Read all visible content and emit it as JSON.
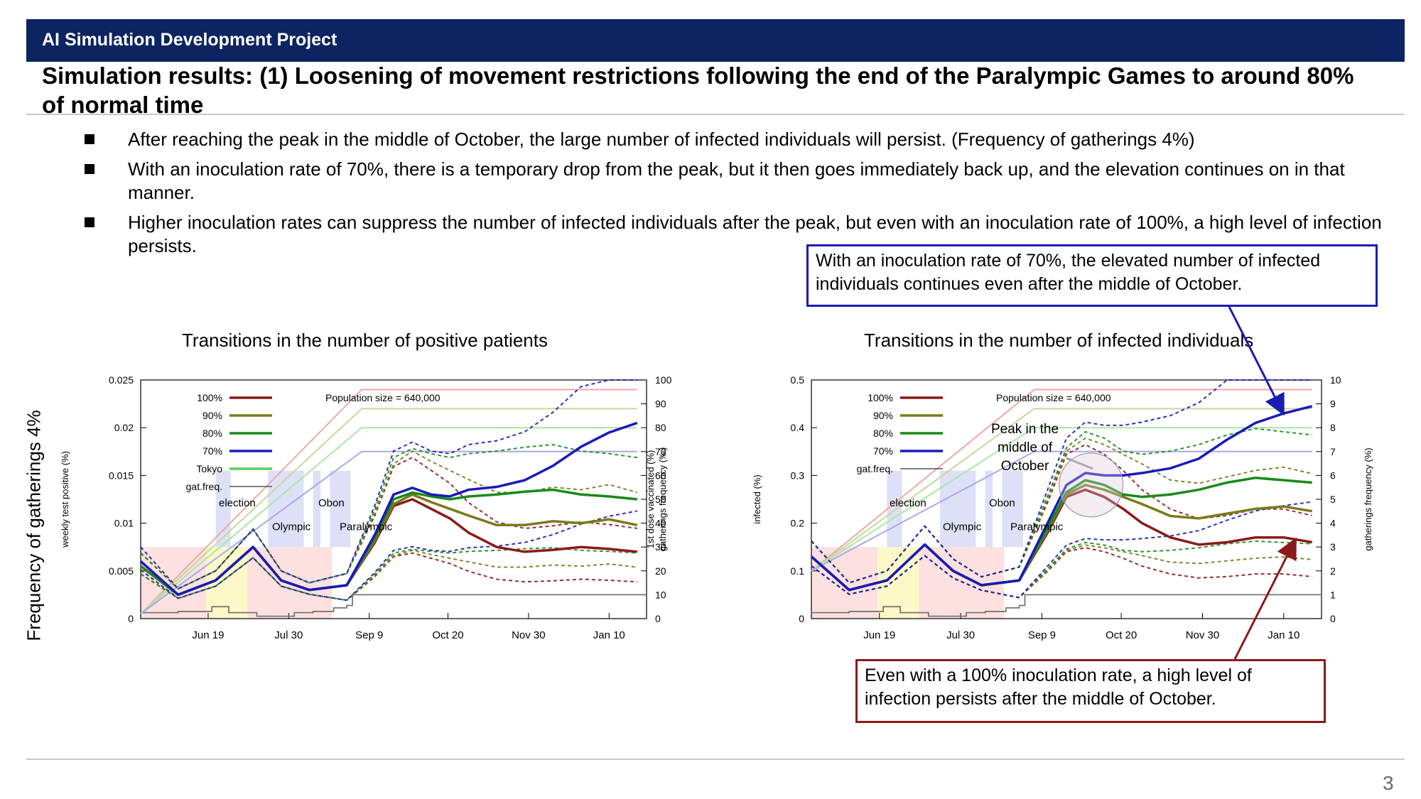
{
  "header": {
    "project": "AI Simulation Development Project",
    "title": "Simulation results: (1) Loosening of movement restrictions following the end of the Paralympic Games to around 80% of normal time"
  },
  "bullets": [
    "After reaching the peak in the middle of October, the large number of infected individuals will persist. (Frequency of gatherings 4%)",
    "With an inoculation rate of 70%, there is a temporary drop from the peak, but it then goes immediately back up, and the elevation continues on in that manner.",
    "Higher inoculation rates can suppress the number of infected individuals after the peak, but even with an inoculation rate of 100%, a high level of infection persists."
  ],
  "callouts": {
    "blue": "With an inoculation rate of 70%, the elevated number of infected individuals continues even after the middle of October.",
    "red": "Even with a 100% inoculation rate, a high level of infection persists after the middle of October."
  },
  "side_label": "Frequency of gatherings 4%",
  "page_number": "3",
  "colors": {
    "header_bg": "#0c2461",
    "s100": "#8b1a1a",
    "s90": "#7a7a1a",
    "s80": "#1a8a1a",
    "s70": "#1a1ab8",
    "tokyo": "#5ad05a",
    "gat": "#555555",
    "blue_callout": "#1c1cb0",
    "red_callout": "#8b1a1a"
  },
  "chart_data": [
    {
      "type": "line",
      "title": "Transitions in the number of positive patients",
      "ylabel_left": "weekly test positive (%)",
      "ylabel_right": [
        "1st dose vaccinated (%)",
        "gatherings frequency (‰)"
      ],
      "ylim_left": [
        0,
        0.025
      ],
      "left_ticks": [
        "0",
        "0.005",
        "0.01",
        "0.015",
        "0.02",
        "0.025"
      ],
      "ylim_right": [
        0,
        100
      ],
      "right_ticks": [
        "0",
        "10",
        "20",
        "30",
        "40",
        "50",
        "60",
        "70",
        "80",
        "90",
        "100"
      ],
      "x_ticks": [
        "Jun 19",
        "Jul 30",
        "Sep 9",
        "Oct 20",
        "Nov 30",
        "Jan 10"
      ],
      "population": "Population size = 640,000",
      "legend": [
        "100%",
        "90%",
        "80%",
        "70%",
        "Tokyo",
        "gat.freq."
      ],
      "event_labels": [
        "election",
        "Olympic",
        "Obon",
        "Paralympic"
      ],
      "series": [
        {
          "name": "100%",
          "color": "s100",
          "x": [
            0,
            20,
            40,
            60,
            75,
            90,
            110,
            125,
            135,
            145,
            155,
            165,
            175,
            190,
            205,
            220,
            235,
            250,
            265
          ],
          "values": [
            0.0055,
            0.0025,
            0.004,
            0.0075,
            0.004,
            0.003,
            0.0035,
            0.008,
            0.0118,
            0.0125,
            0.0115,
            0.0105,
            0.009,
            0.0075,
            0.007,
            0.0072,
            0.0075,
            0.0073,
            0.007
          ]
        },
        {
          "name": "90%",
          "color": "s90",
          "x": [
            0,
            20,
            40,
            60,
            75,
            90,
            110,
            125,
            135,
            145,
            155,
            165,
            175,
            190,
            205,
            220,
            235,
            250,
            265
          ],
          "values": [
            0.0055,
            0.0025,
            0.004,
            0.0075,
            0.004,
            0.003,
            0.0035,
            0.0082,
            0.012,
            0.013,
            0.0122,
            0.0115,
            0.0108,
            0.0098,
            0.0098,
            0.0102,
            0.01,
            0.0104,
            0.0098
          ]
        },
        {
          "name": "80%",
          "color": "s80",
          "x": [
            0,
            20,
            40,
            60,
            75,
            90,
            110,
            125,
            135,
            145,
            155,
            165,
            175,
            190,
            205,
            220,
            235,
            250,
            265
          ],
          "values": [
            0.0055,
            0.0025,
            0.004,
            0.0075,
            0.004,
            0.003,
            0.0035,
            0.0085,
            0.0125,
            0.0132,
            0.0128,
            0.0125,
            0.0128,
            0.013,
            0.0133,
            0.0135,
            0.013,
            0.0128,
            0.0125
          ]
        },
        {
          "name": "70%",
          "color": "s70",
          "x": [
            0,
            20,
            40,
            60,
            75,
            90,
            110,
            125,
            135,
            145,
            155,
            165,
            175,
            190,
            205,
            220,
            235,
            250,
            265
          ],
          "values": [
            0.006,
            0.0025,
            0.004,
            0.0075,
            0.004,
            0.003,
            0.0035,
            0.0088,
            0.013,
            0.0137,
            0.013,
            0.0128,
            0.0135,
            0.0138,
            0.0145,
            0.016,
            0.018,
            0.0195,
            0.0205
          ]
        }
      ]
    },
    {
      "type": "line",
      "title": "Transitions in the number of infected individuals",
      "ylabel_left": "infected (%)",
      "ylabel_right": [
        "gatherings frequency (%)"
      ],
      "ylim_left": [
        0,
        0.5
      ],
      "left_ticks": [
        "0",
        "0.1",
        "0.2",
        "0.3",
        "0.4",
        "0.5"
      ],
      "ylim_right": [
        0,
        10
      ],
      "right_ticks": [
        "0",
        "1",
        "2",
        "3",
        "4",
        "5",
        "6",
        "7",
        "8",
        "9",
        "10"
      ],
      "x_ticks": [
        "Jun 19",
        "Jul 30",
        "Sep 9",
        "Oct 20",
        "Nov 30",
        "Jan 10"
      ],
      "population": "Population size = 640,000",
      "legend": [
        "100%",
        "90%",
        "80%",
        "70%",
        "gat.freq."
      ],
      "event_labels": [
        "election",
        "Olympic",
        "Obon",
        "Paralympic"
      ],
      "annotation": "Peak in the middle of October",
      "series": [
        {
          "name": "100%",
          "color": "s100",
          "x": [
            0,
            20,
            40,
            60,
            75,
            90,
            110,
            125,
            135,
            145,
            155,
            165,
            175,
            190,
            205,
            220,
            235,
            250,
            265
          ],
          "values": [
            0.13,
            0.06,
            0.08,
            0.155,
            0.1,
            0.07,
            0.08,
            0.18,
            0.255,
            0.27,
            0.255,
            0.23,
            0.2,
            0.17,
            0.155,
            0.16,
            0.17,
            0.17,
            0.16
          ]
        },
        {
          "name": "90%",
          "color": "s90",
          "x": [
            0,
            20,
            40,
            60,
            75,
            90,
            110,
            125,
            135,
            145,
            155,
            165,
            175,
            190,
            205,
            220,
            235,
            250,
            265
          ],
          "values": [
            0.13,
            0.06,
            0.08,
            0.155,
            0.1,
            0.07,
            0.08,
            0.185,
            0.26,
            0.28,
            0.27,
            0.255,
            0.24,
            0.215,
            0.21,
            0.22,
            0.23,
            0.235,
            0.225
          ]
        },
        {
          "name": "80%",
          "color": "s80",
          "x": [
            0,
            20,
            40,
            60,
            75,
            90,
            110,
            125,
            135,
            145,
            155,
            165,
            175,
            190,
            205,
            220,
            235,
            250,
            265
          ],
          "values": [
            0.13,
            0.06,
            0.08,
            0.155,
            0.1,
            0.07,
            0.08,
            0.19,
            0.265,
            0.29,
            0.28,
            0.26,
            0.255,
            0.26,
            0.27,
            0.285,
            0.295,
            0.29,
            0.285
          ]
        },
        {
          "name": "70%",
          "color": "s70",
          "x": [
            0,
            20,
            40,
            60,
            75,
            90,
            110,
            125,
            135,
            145,
            155,
            165,
            175,
            190,
            205,
            220,
            235,
            250,
            265
          ],
          "values": [
            0.13,
            0.06,
            0.08,
            0.155,
            0.1,
            0.07,
            0.08,
            0.2,
            0.28,
            0.305,
            0.3,
            0.3,
            0.305,
            0.315,
            0.335,
            0.375,
            0.41,
            0.43,
            0.445
          ]
        }
      ]
    }
  ]
}
